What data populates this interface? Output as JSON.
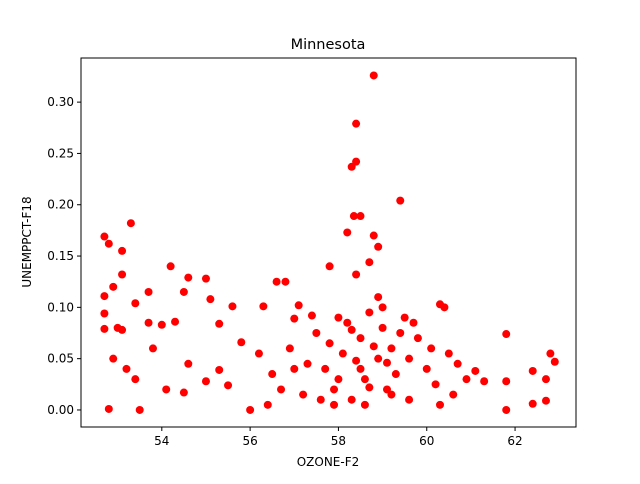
{
  "chart_data": {
    "type": "scatter",
    "title": "Minnesota",
    "x_label": "OZONE-F2",
    "y_label": "UNEMPPCT-F18",
    "color": "#ff0000",
    "x": [
      58.8,
      58.4,
      58.4,
      58.3,
      59.4,
      58.35,
      58.5,
      53.3,
      52.7,
      52.8,
      53.1,
      54.2,
      57.8,
      58.8,
      58.9,
      58.2,
      58.7,
      58.4,
      53.1,
      52.9,
      54.6,
      56.6,
      56.8,
      55.0,
      52.7,
      53.7,
      54.5,
      55.1,
      53.4,
      55.6,
      60.3,
      60.4,
      62.8,
      62.9,
      61.8,
      61.8,
      61.8,
      62.4,
      62.4,
      62.7,
      62.7,
      56.0,
      55.5,
      55.3,
      53.5,
      52.8,
      54.5,
      52.7,
      52.7,
      53.0,
      53.1,
      55.3,
      54.0,
      53.7,
      54.3,
      56.3,
      57.1,
      57.0,
      52.9,
      53.2,
      53.4,
      53.8,
      54.1,
      54.6,
      55.0,
      55.8,
      56.2,
      56.5,
      56.9,
      57.2,
      57.5,
      57.7,
      57.9,
      58.0,
      58.1,
      58.3,
      58.5,
      58.6,
      58.7,
      58.9,
      59.0,
      59.1,
      59.2,
      59.3,
      59.5,
      59.6,
      59.8,
      60.0,
      60.2,
      60.5,
      60.7,
      60.9,
      61.1,
      61.3,
      57.3,
      57.8,
      58.2,
      58.6,
      59.0,
      59.4,
      58.0,
      58.4,
      58.8,
      59.2,
      57.6,
      58.3,
      58.7,
      59.1,
      57.4,
      58.5,
      59.7,
      60.1,
      60.6,
      56.7,
      56.4,
      57.0,
      57.9,
      58.9,
      59.6,
      60.3
    ],
    "values": [
      0.326,
      0.279,
      0.242,
      0.237,
      0.204,
      0.189,
      0.189,
      0.182,
      0.169,
      0.162,
      0.155,
      0.14,
      0.14,
      0.17,
      0.159,
      0.173,
      0.144,
      0.132,
      0.132,
      0.12,
      0.129,
      0.125,
      0.125,
      0.128,
      0.111,
      0.115,
      0.115,
      0.108,
      0.104,
      0.101,
      0.103,
      0.1,
      0.055,
      0.047,
      0.074,
      0.028,
      0.0,
      0.038,
      0.006,
      0.03,
      0.009,
      0.0,
      0.024,
      0.039,
      0.0,
      0.001,
      0.017,
      0.079,
      0.094,
      0.08,
      0.078,
      0.084,
      0.083,
      0.085,
      0.086,
      0.101,
      0.102,
      0.089,
      0.05,
      0.04,
      0.03,
      0.06,
      0.02,
      0.045,
      0.028,
      0.066,
      0.055,
      0.035,
      0.06,
      0.015,
      0.075,
      0.04,
      0.02,
      0.09,
      0.055,
      0.01,
      0.07,
      0.03,
      0.095,
      0.05,
      0.08,
      0.02,
      0.06,
      0.035,
      0.09,
      0.01,
      0.07,
      0.04,
      0.025,
      0.055,
      0.045,
      0.03,
      0.038,
      0.028,
      0.045,
      0.065,
      0.085,
      0.005,
      0.1,
      0.075,
      0.03,
      0.048,
      0.062,
      0.015,
      0.01,
      0.078,
      0.022,
      0.046,
      0.092,
      0.04,
      0.085,
      0.06,
      0.015,
      0.02,
      0.005,
      0.04,
      0.005,
      0.11,
      0.05,
      0.005
    ],
    "xlim": [
      52.17,
      63.38
    ],
    "xticks": [
      54,
      56,
      58,
      60,
      62
    ],
    "ylim": [
      -0.0166,
      0.343
    ],
    "yticks": [
      {
        "value": 0,
        "label": "0.00"
      },
      {
        "value": 0.05,
        "label": "0.05"
      },
      {
        "value": 0.1,
        "label": "0.10"
      },
      {
        "value": 0.15,
        "label": "0.15"
      },
      {
        "value": 0.2,
        "label": "0.20"
      },
      {
        "value": 0.25,
        "label": "0.25"
      },
      {
        "value": 0.3,
        "label": "0.30"
      }
    ]
  }
}
